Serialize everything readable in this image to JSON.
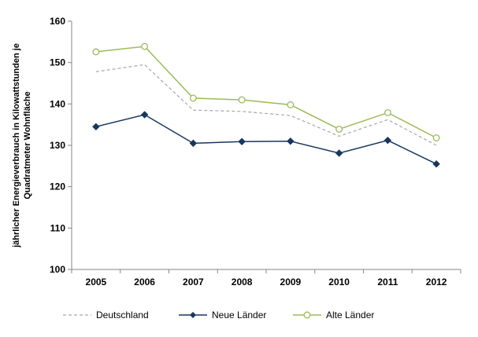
{
  "chart_data": {
    "type": "line",
    "title": "",
    "xlabel": "",
    "ylabel_lines": [
      "jährlicher Energieverbrauch in Kilowattstunden je",
      "Quadratmeter Wohnfläche"
    ],
    "x": [
      "2005",
      "2006",
      "2007",
      "2008",
      "2009",
      "2010",
      "2011",
      "2012"
    ],
    "ylim": [
      100,
      160
    ],
    "yticks": [
      100,
      110,
      120,
      130,
      140,
      150,
      160
    ],
    "ytick_labels": [
      "100",
      "110",
      "120",
      "130",
      "140",
      "150",
      "160"
    ],
    "grid": false,
    "legend_position": "bottom",
    "series": [
      {
        "name": "Deutschland",
        "values": [
          147.8,
          149.5,
          138.5,
          138.2,
          137.2,
          132.2,
          136.2,
          130.0
        ],
        "color": "#a6a6a6",
        "style": "dashed",
        "marker": "none"
      },
      {
        "name": "Neue Länder",
        "values": [
          134.5,
          137.4,
          130.5,
          130.9,
          131.0,
          128.1,
          131.2,
          125.5
        ],
        "color": "#17375e",
        "style": "solid",
        "marker": "diamond"
      },
      {
        "name": "Alte Länder",
        "values": [
          152.6,
          153.9,
          141.4,
          141.0,
          139.8,
          133.9,
          137.9,
          131.8
        ],
        "color": "#9bbb59",
        "style": "solid",
        "marker": "circle"
      }
    ]
  }
}
